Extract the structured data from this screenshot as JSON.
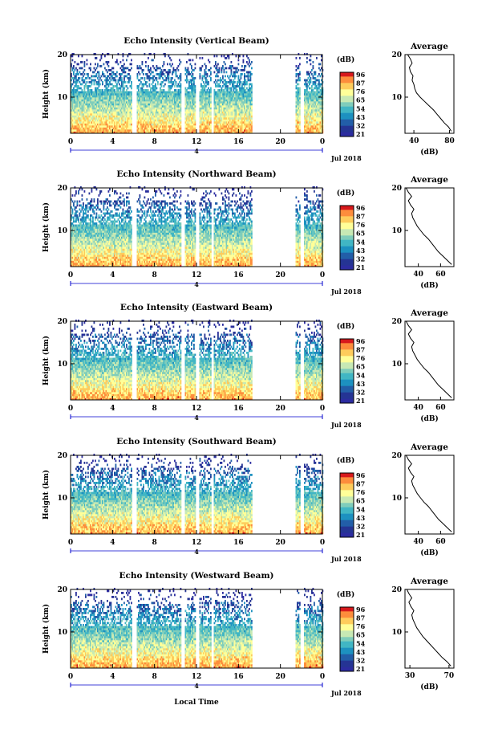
{
  "figure": {
    "xlabel": "Local Time",
    "date_label": "Jul 2018",
    "day_marker": "4",
    "colorbar_unit": "(dB)",
    "avg_title": "Average",
    "avg_xlabel": "(dB)",
    "colorbar_ticks": [
      "96",
      "87",
      "76",
      "65",
      "54",
      "43",
      "32",
      "21"
    ],
    "colorbar_colors": [
      "#d7191c",
      "#fd8d3c",
      "#fecc5c",
      "#ffff99",
      "#c7e9b4",
      "#7fcdbb",
      "#41b6c4",
      "#1d91c0",
      "#225ea8",
      "#253494",
      "#2c2ca0"
    ]
  },
  "chart_data": [
    {
      "type": "heatmap",
      "title": "Echo Intensity (Vertical Beam)",
      "ylabel": "Height (km)",
      "x_ticks": [
        "0",
        "4",
        "8",
        "12",
        "16",
        "20",
        "0"
      ],
      "y_ticks": [
        "20",
        "10"
      ],
      "xlim": [
        0,
        24
      ],
      "ylim": [
        1.5,
        20
      ],
      "colorbar_range": [
        21,
        96
      ],
      "data_gaps_hours": [
        [
          5.8,
          6.2
        ],
        [
          10.5,
          10.8
        ],
        [
          11.9,
          12.2
        ],
        [
          13.3,
          13.6
        ],
        [
          17.2,
          21.4
        ],
        [
          21.8,
          22.2
        ]
      ],
      "average_profile": {
        "x_ticks": [
          "40",
          "80"
        ],
        "y_ticks": [
          "20",
          "10"
        ],
        "xlim": [
          30,
          85
        ],
        "ylim": [
          1.5,
          20
        ],
        "height": [
          2,
          3,
          4,
          5,
          6,
          7,
          8,
          9,
          10,
          11,
          12,
          13,
          14,
          15,
          16,
          17,
          18,
          19,
          20
        ],
        "db": [
          82,
          79,
          74,
          70,
          66,
          62,
          57,
          52,
          47,
          43,
          41,
          40,
          38,
          39,
          36,
          35,
          38,
          36,
          33
        ]
      }
    },
    {
      "type": "heatmap",
      "title": "Echo Intensity (Northward Beam)",
      "ylabel": "Height (km)",
      "x_ticks": [
        "0",
        "4",
        "8",
        "12",
        "16",
        "20",
        "0"
      ],
      "y_ticks": [
        "20",
        "10"
      ],
      "xlim": [
        0,
        24
      ],
      "ylim": [
        1.5,
        20
      ],
      "colorbar_range": [
        21,
        96
      ],
      "data_gaps_hours": [
        [
          5.8,
          6.2
        ],
        [
          10.5,
          10.8
        ],
        [
          11.9,
          12.2
        ],
        [
          13.3,
          13.6
        ],
        [
          17.2,
          21.4
        ],
        [
          21.8,
          22.2
        ]
      ],
      "average_profile": {
        "x_ticks": [
          "40",
          "60"
        ],
        "y_ticks": [
          "20",
          "10"
        ],
        "xlim": [
          28,
          72
        ],
        "ylim": [
          1.5,
          20
        ],
        "height": [
          2,
          3,
          4,
          5,
          6,
          7,
          8,
          9,
          10,
          11,
          12,
          13,
          14,
          15,
          16,
          17,
          18,
          19,
          20
        ],
        "db": [
          70,
          66,
          62,
          58,
          55,
          52,
          49,
          45,
          42,
          39,
          37,
          35,
          34,
          36,
          33,
          31,
          34,
          31,
          29
        ]
      }
    },
    {
      "type": "heatmap",
      "title": "Echo Intensity (Eastward Beam)",
      "ylabel": "Height (km)",
      "x_ticks": [
        "0",
        "4",
        "8",
        "12",
        "16",
        "20",
        "0"
      ],
      "y_ticks": [
        "20",
        "10"
      ],
      "xlim": [
        0,
        24
      ],
      "ylim": [
        1.5,
        20
      ],
      "colorbar_range": [
        21,
        96
      ],
      "data_gaps_hours": [
        [
          5.8,
          6.2
        ],
        [
          10.5,
          10.8
        ],
        [
          11.9,
          12.2
        ],
        [
          13.3,
          13.6
        ],
        [
          17.2,
          21.4
        ],
        [
          21.8,
          22.2
        ]
      ],
      "average_profile": {
        "x_ticks": [
          "40",
          "60"
        ],
        "y_ticks": [
          "20",
          "10"
        ],
        "xlim": [
          28,
          72
        ],
        "ylim": [
          1.5,
          20
        ],
        "height": [
          2,
          3,
          4,
          5,
          6,
          7,
          8,
          9,
          10,
          11,
          12,
          13,
          14,
          15,
          16,
          17,
          18,
          19,
          20
        ],
        "db": [
          70,
          66,
          62,
          58,
          55,
          52,
          49,
          45,
          42,
          39,
          37,
          35,
          34,
          36,
          33,
          31,
          34,
          31,
          29
        ]
      }
    },
    {
      "type": "heatmap",
      "title": "Echo Intensity (Southward Beam)",
      "ylabel": "Height (km)",
      "x_ticks": [
        "0",
        "4",
        "8",
        "12",
        "16",
        "20",
        "0"
      ],
      "y_ticks": [
        "20",
        "10"
      ],
      "xlim": [
        0,
        24
      ],
      "ylim": [
        1.5,
        20
      ],
      "colorbar_range": [
        21,
        96
      ],
      "data_gaps_hours": [
        [
          5.8,
          6.2
        ],
        [
          10.5,
          10.8
        ],
        [
          11.9,
          12.2
        ],
        [
          13.3,
          13.6
        ],
        [
          17.2,
          21.4
        ],
        [
          21.8,
          22.2
        ]
      ],
      "average_profile": {
        "x_ticks": [
          "40",
          "60"
        ],
        "y_ticks": [
          "20",
          "10"
        ],
        "xlim": [
          28,
          72
        ],
        "ylim": [
          1.5,
          20
        ],
        "height": [
          2,
          3,
          4,
          5,
          6,
          7,
          8,
          9,
          10,
          11,
          12,
          13,
          14,
          15,
          16,
          17,
          18,
          19,
          20
        ],
        "db": [
          70,
          66,
          62,
          58,
          55,
          52,
          49,
          45,
          42,
          39,
          37,
          35,
          34,
          36,
          33,
          31,
          34,
          31,
          29
        ]
      }
    },
    {
      "type": "heatmap",
      "title": "Echo Intensity (Westward Beam)",
      "ylabel": "Height (km)",
      "x_ticks": [
        "0",
        "4",
        "8",
        "12",
        "16",
        "20",
        "0"
      ],
      "y_ticks": [
        "20",
        "10"
      ],
      "xlim": [
        0,
        24
      ],
      "ylim": [
        1.5,
        20
      ],
      "colorbar_range": [
        21,
        96
      ],
      "data_gaps_hours": [
        [
          5.8,
          6.2
        ],
        [
          10.5,
          10.8
        ],
        [
          11.9,
          12.2
        ],
        [
          13.3,
          13.6
        ],
        [
          17.2,
          21.4
        ],
        [
          21.8,
          22.2
        ]
      ],
      "average_profile": {
        "x_ticks": [
          "30",
          "70"
        ],
        "y_ticks": [
          "20",
          "10"
        ],
        "xlim": [
          25,
          75
        ],
        "ylim": [
          1.5,
          20
        ],
        "height": [
          2,
          3,
          4,
          5,
          6,
          7,
          8,
          9,
          10,
          11,
          12,
          13,
          14,
          15,
          16,
          17,
          18,
          19,
          20
        ],
        "db": [
          72,
          68,
          63,
          59,
          55,
          51,
          47,
          43,
          40,
          37,
          35,
          33,
          32,
          34,
          31,
          29,
          32,
          29,
          27
        ]
      }
    }
  ]
}
